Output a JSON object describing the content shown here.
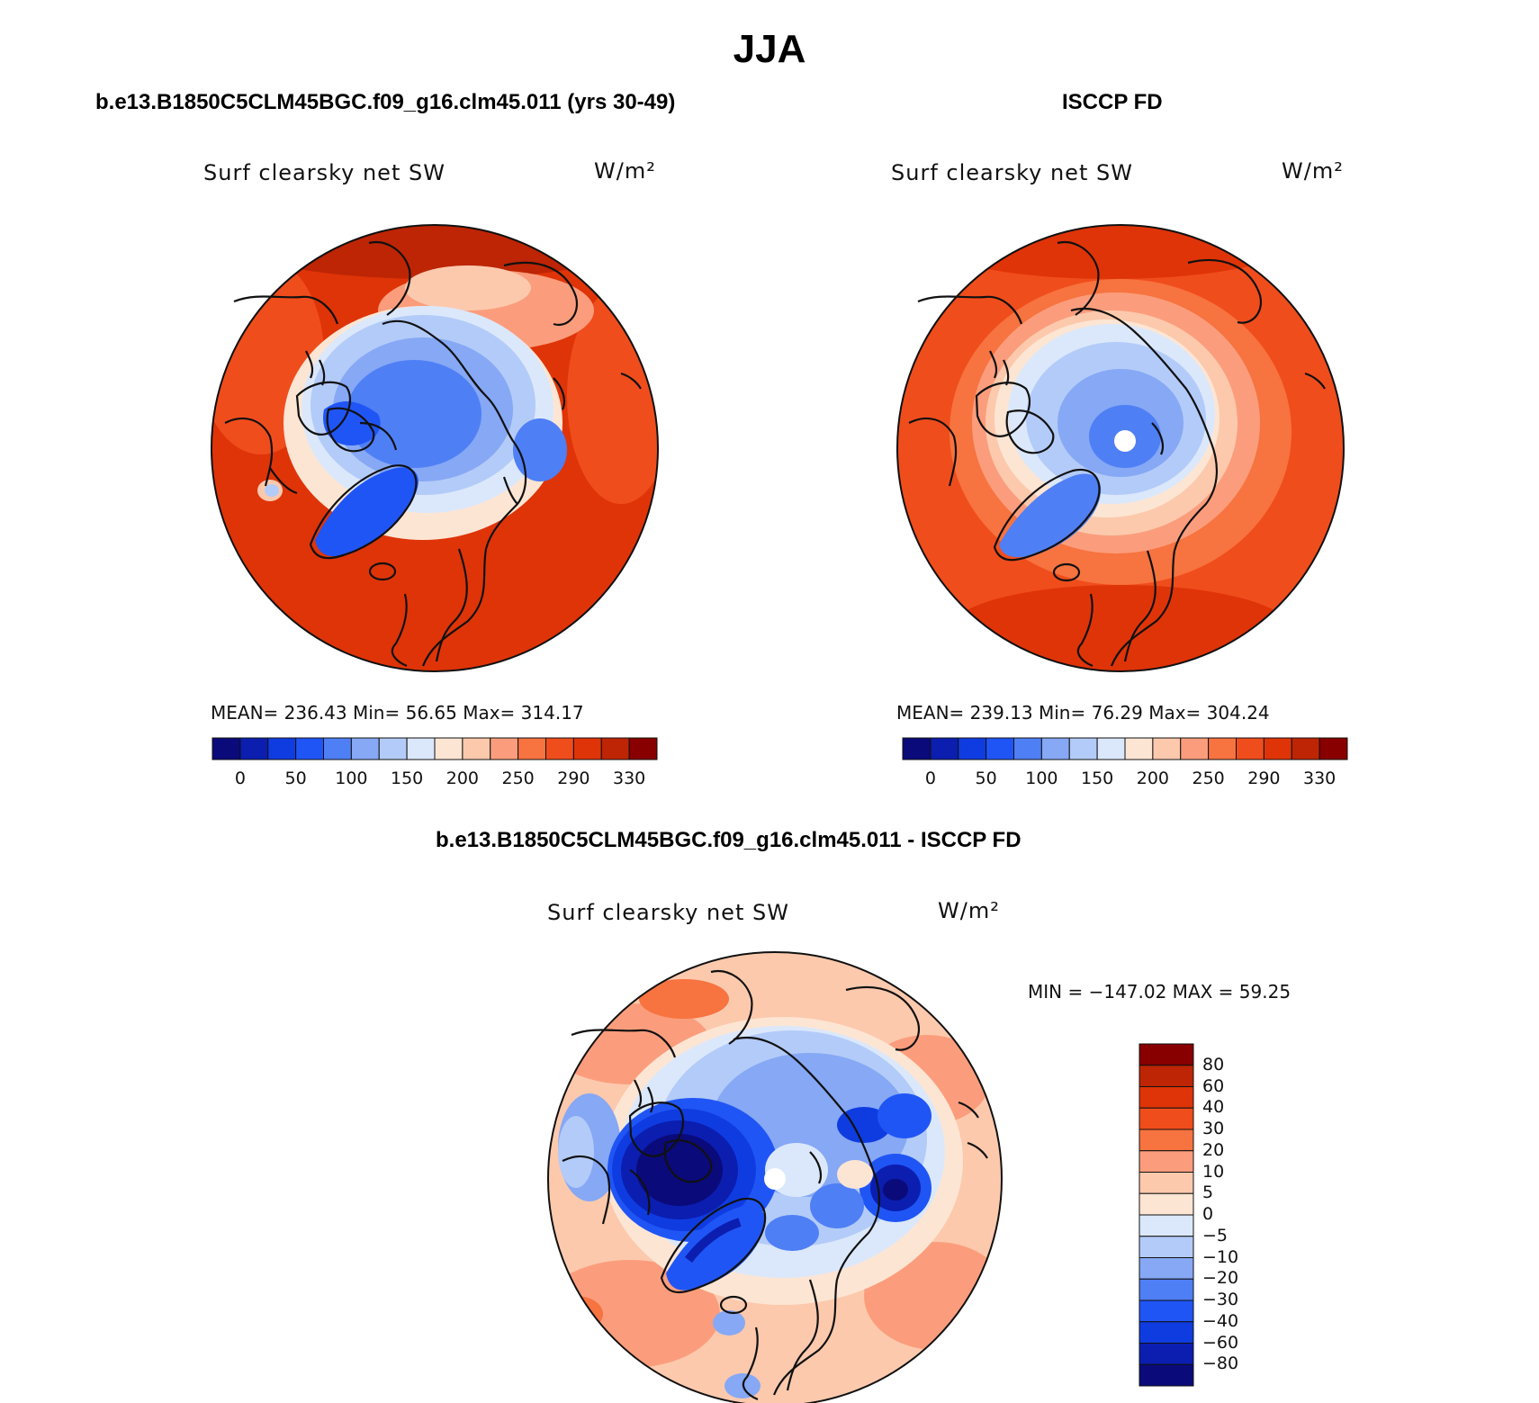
{
  "figure": {
    "title": "JJA"
  },
  "panels": [
    {
      "title": "b.e13.B1850C5CLM45BGC.f09_g16.clm45.011 (yrs 30-49)",
      "variable": "Surf clearsky net SW",
      "units": "W/m²",
      "stats": "MEAN= 236.43   Min=   56.65   Max= 314.17"
    },
    {
      "title": "ISCCP FD",
      "variable": "Surf clearsky net SW",
      "units": "W/m²",
      "stats": "MEAN= 239.13   Min=   76.29   Max= 304.24"
    },
    {
      "title": "b.e13.B1850C5CLM45BGC.f09_g16.clm45.011 - ISCCP FD",
      "variable": "Surf clearsky net SW",
      "units": "W/m²",
      "stats": "MIN = −147.02 MAX =   59.25"
    }
  ],
  "colorbar_absolute": {
    "colors": [
      "#0a0a7a",
      "#0b1eb0",
      "#0f3ce0",
      "#2055f5",
      "#4f7ff5",
      "#86a8f5",
      "#b3cbf8",
      "#dbe8fb",
      "#fde5d3",
      "#fcc9ad",
      "#fb9d7c",
      "#f7733f",
      "#f04d1c",
      "#df3408",
      "#bd2504",
      "#880000"
    ],
    "tick_labels": [
      "0",
      "50",
      "100",
      "150",
      "200",
      "250",
      "290",
      "330"
    ]
  },
  "colorbar_difference": {
    "colors": [
      "#0a0a7a",
      "#0b1eb0",
      "#0f3ce0",
      "#2055f5",
      "#4f7ff5",
      "#86a8f5",
      "#b3cbf8",
      "#dbe8fb",
      "#fde5d3",
      "#fcc9ad",
      "#fb9d7c",
      "#f7733f",
      "#f04d1c",
      "#df3408",
      "#bd2504",
      "#880000"
    ],
    "tick_labels": [
      "80",
      "60",
      "40",
      "30",
      "20",
      "10",
      "5",
      "0",
      "−5",
      "−10",
      "−20",
      "−30",
      "−40",
      "−60",
      "−80"
    ]
  },
  "map": {
    "projection": "north polar stereographic",
    "feature": "coastlines"
  }
}
